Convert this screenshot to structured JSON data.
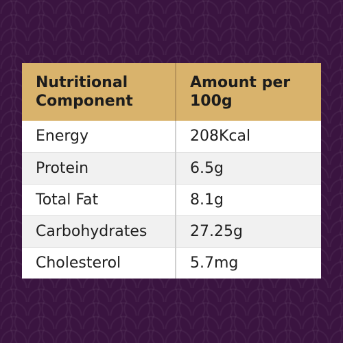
{
  "table": {
    "headers": [
      "Nutritional Component",
      "Amount per 100g"
    ],
    "rows": [
      [
        "Energy",
        "208Kcal"
      ],
      [
        "Protein",
        "6.5g"
      ],
      [
        "Total Fat",
        "8.1g"
      ],
      [
        "Carbohydrates",
        "27.25g"
      ],
      [
        "Cholesterol",
        "5.7mg"
      ]
    ]
  },
  "colors": {
    "background": "#3a1440",
    "header": "#d9b36c",
    "row_light": "#ffffff",
    "row_alt": "#f1f1f1"
  }
}
